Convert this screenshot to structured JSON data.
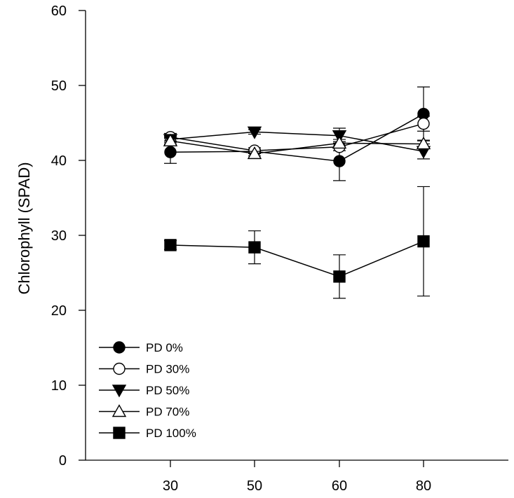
{
  "chart_data": {
    "type": "line",
    "title": "",
    "xlabel": "",
    "ylabel": "Chlorophyll (SPAD)",
    "categories": [
      "30",
      "50",
      "60",
      "80"
    ],
    "yticks": [
      0,
      10,
      20,
      30,
      40,
      50,
      60
    ],
    "ylim": [
      0,
      60
    ],
    "grid": false,
    "legend_position": "bottom-left",
    "series": [
      {
        "name": "PD 0%",
        "marker": "circle",
        "filled": true,
        "values": [
          41.1,
          41.2,
          39.9,
          46.2
        ],
        "errors": [
          1.5,
          0.3,
          2.6,
          3.6
        ]
      },
      {
        "name": "PD 30%",
        "marker": "circle",
        "filled": false,
        "values": [
          43.1,
          41.3,
          41.8,
          44.9
        ],
        "errors": [
          0.5,
          0.4,
          0.5,
          1.0
        ]
      },
      {
        "name": "PD 50%",
        "marker": "triangle-down",
        "filled": true,
        "values": [
          42.8,
          43.8,
          43.3,
          41.2
        ],
        "errors": [
          0.4,
          0.3,
          1.0,
          1.0
        ]
      },
      {
        "name": "PD 70%",
        "marker": "triangle-up",
        "filled": false,
        "values": [
          42.6,
          40.9,
          42.3,
          42.2
        ],
        "errors": [
          0.4,
          0.3,
          0.5,
          0.5
        ]
      },
      {
        "name": "PD 100%",
        "marker": "square",
        "filled": true,
        "values": [
          28.7,
          28.4,
          24.5,
          29.2
        ],
        "errors": [
          0.6,
          2.2,
          2.9,
          7.3
        ]
      }
    ]
  }
}
